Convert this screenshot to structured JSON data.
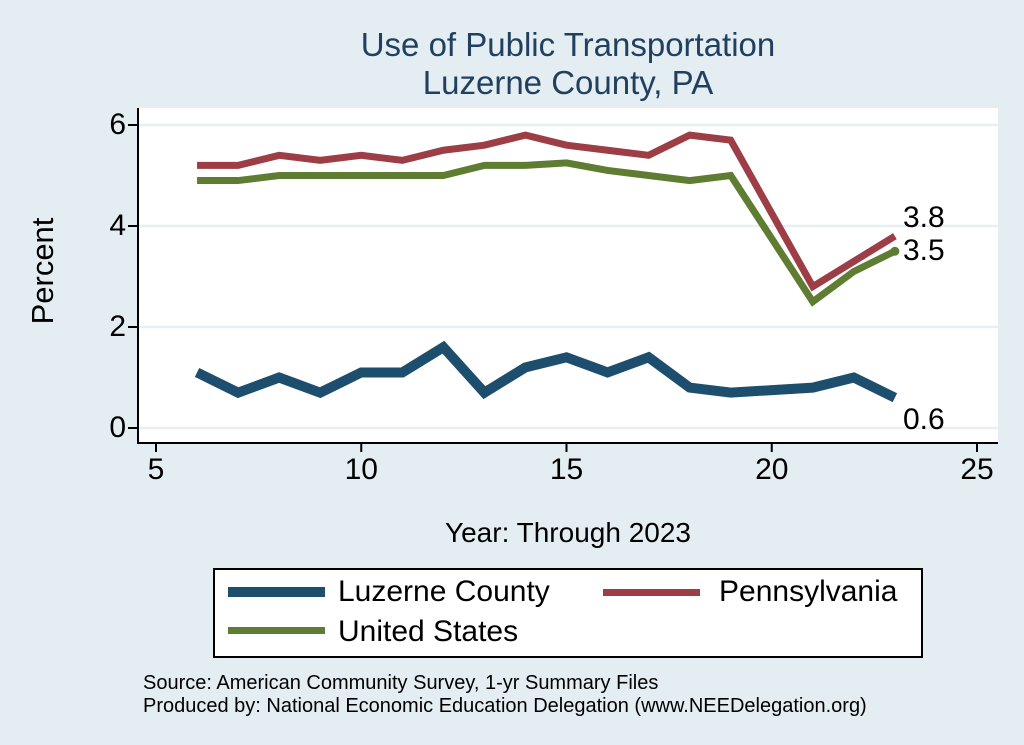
{
  "title": {
    "line1": "Use of Public Transportation",
    "line2": "Luzerne County, PA"
  },
  "footer": {
    "source": "Source: American Community Survey, 1-yr Summary Files",
    "produced_by": "Produced by: National Economic Education Delegation (www.NEEDelegation.org)"
  },
  "chart_data": {
    "type": "line",
    "title": "Use of Public Transportation Luzerne County, PA",
    "xlabel": "Year: Through 2023",
    "ylabel": "Percent",
    "xlim": [
      5,
      25
    ],
    "ylim": [
      0,
      6
    ],
    "xticks": [
      5,
      10,
      15,
      20,
      25
    ],
    "yticks": [
      0,
      2,
      4,
      6
    ],
    "grid": true,
    "legend_position": "bottom",
    "x": [
      6,
      7,
      8,
      9,
      10,
      11,
      12,
      13,
      14,
      15,
      16,
      17,
      18,
      19,
      21,
      22,
      23
    ],
    "series": [
      {
        "id": "luzerne-county",
        "name": "Luzerne County",
        "color": "#1e4e6e",
        "line_width": 10,
        "end_label": "0.6",
        "end_label_dy": 22,
        "end_dot": false,
        "values": [
          1.1,
          0.7,
          1.0,
          0.7,
          1.1,
          1.1,
          1.6,
          0.7,
          1.2,
          1.4,
          1.1,
          1.4,
          0.8,
          0.7,
          0.8,
          1.0,
          0.6
        ]
      },
      {
        "id": "pennsylvania",
        "name": "Pennsylvania",
        "color": "#9d3d46",
        "line_width": 7,
        "end_label": "3.8",
        "end_label_dy": -18,
        "end_dot": false,
        "values": [
          5.2,
          5.2,
          5.4,
          5.3,
          5.4,
          5.3,
          5.5,
          5.6,
          5.8,
          5.6,
          5.5,
          5.4,
          5.8,
          5.7,
          2.8,
          3.3,
          3.8
        ]
      },
      {
        "id": "united-states",
        "name": "United States",
        "color": "#5f7d32",
        "line_width": 7,
        "end_label": "3.5",
        "end_label_dy": 0,
        "end_dot": true,
        "values": [
          4.9,
          4.9,
          5.0,
          5.0,
          5.0,
          5.0,
          5.0,
          5.2,
          5.2,
          5.25,
          5.1,
          5.0,
          4.9,
          5.0,
          2.5,
          3.1,
          3.5
        ]
      }
    ],
    "colors": {
      "background": "#e3edf2",
      "plot_background": "#ffffff",
      "grid": "#e8eff2",
      "axis": "#000000",
      "title": "#21405f"
    }
  }
}
